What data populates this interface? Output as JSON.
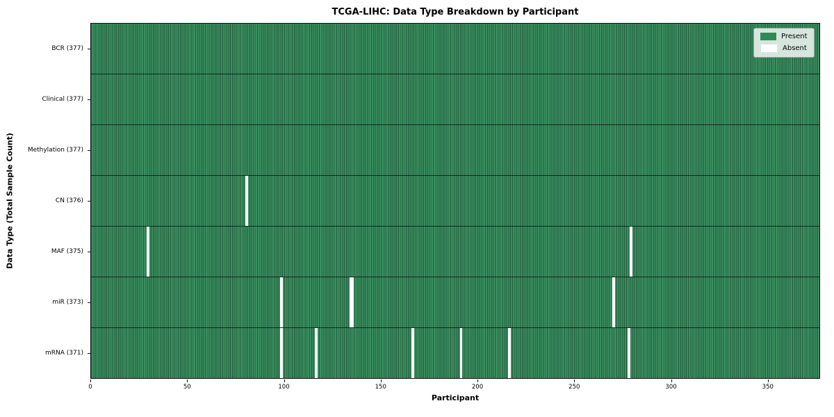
{
  "chart_data": {
    "type": "heatmap",
    "title": "TCGA-LIHC: Data Type Breakdown by Participant",
    "xlabel": "Participant",
    "ylabel": "Data Type (Total Sample Count)",
    "x_range": [
      0,
      377
    ],
    "x_ticks": [
      0,
      50,
      100,
      150,
      200,
      250,
      300,
      350
    ],
    "n_participants": 377,
    "grid": false,
    "legend_position": "upper right",
    "rows": [
      {
        "name": "BCR",
        "label": "BCR (377)",
        "total": 377,
        "absent": []
      },
      {
        "name": "Clinical",
        "label": "Clinical (377)",
        "total": 377,
        "absent": []
      },
      {
        "name": "Methylation",
        "label": "Methylation (377)",
        "total": 377,
        "absent": []
      },
      {
        "name": "CN",
        "label": "CN (376)",
        "total": 376,
        "absent": [
          80
        ]
      },
      {
        "name": "MAF",
        "label": "MAF (375)",
        "total": 375,
        "absent": [
          29,
          279
        ]
      },
      {
        "name": "miR",
        "label": "miR (373)",
        "total": 373,
        "absent": [
          98,
          134,
          135,
          270
        ]
      },
      {
        "name": "mRNA",
        "label": "mRNA (371)",
        "total": 371,
        "absent": [
          98,
          116,
          166,
          191,
          216,
          278
        ]
      }
    ],
    "legend": [
      {
        "name": "present",
        "label": "Present",
        "color": "#2e8b57"
      },
      {
        "name": "absent",
        "label": "Absent",
        "color": "#ffffff"
      }
    ],
    "colors": {
      "present_fill": "#3a8f60",
      "present_edge": "#235c3d",
      "absent_fill": "#ffffff",
      "row_divider": "#0a1f12",
      "axis": "#0f0f0f"
    }
  }
}
